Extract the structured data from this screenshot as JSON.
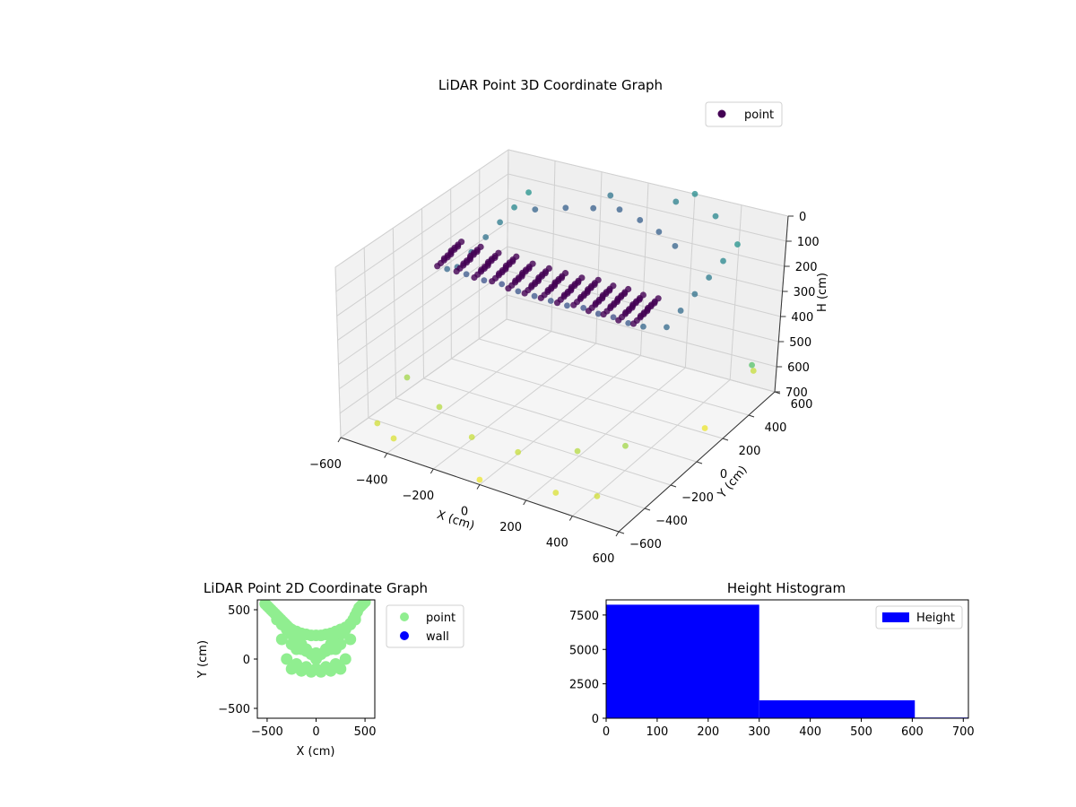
{
  "chart_data": [
    {
      "type": "scatter3d",
      "title": "LiDAR Point 3D Coordinate Graph",
      "xlabel": "X (cm)",
      "ylabel": "Y (cm)",
      "zlabel": "H (cm)",
      "xlim": [
        -600,
        600
      ],
      "ylim": [
        -600,
        600
      ],
      "zlim": [
        0,
        700
      ],
      "z_inverted": true,
      "xticks": [
        "−600",
        "−400",
        "−200",
        "0",
        "200",
        "400",
        "600"
      ],
      "yticks": [
        "−600",
        "−400",
        "−200",
        "0",
        "200",
        "400",
        "600"
      ],
      "zticks": [
        "0",
        "100",
        "200",
        "300",
        "400",
        "500",
        "600",
        "700"
      ],
      "colormap": "viridis",
      "grid": true,
      "legend": {
        "position": "top-right",
        "entries": [
          {
            "label": "point",
            "color": "#440154"
          }
        ]
      },
      "series": [
        {
          "name": "point",
          "description_of_distribution": "dense U-shaped wall of points near the top (H 0-300), vertical columns on left and right sides, sparse floor points near H 600-700",
          "x": [
            -420,
            -350,
            -280,
            -210,
            -140,
            -70,
            0,
            70,
            140,
            210,
            280,
            350,
            420,
            -450,
            -450,
            -450,
            -450,
            -450,
            -450,
            450,
            450,
            450,
            450,
            450,
            450,
            -300,
            -200,
            -100,
            0,
            100,
            200,
            300,
            -500,
            -400,
            0,
            300,
            450,
            500,
            -550,
            -350,
            -150,
            50,
            250,
            400,
            520,
            -100,
            150,
            350,
            200,
            600
          ],
          "y": [
            -120,
            -100,
            -90,
            -80,
            -80,
            -80,
            -80,
            -80,
            -80,
            -90,
            -100,
            -110,
            -120,
            0,
            100,
            200,
            300,
            400,
            500,
            0,
            100,
            200,
            300,
            400,
            500,
            300,
            350,
            380,
            400,
            380,
            350,
            300,
            -500,
            -550,
            -600,
            -550,
            -500,
            600,
            -200,
            -300,
            -400,
            -400,
            -300,
            -200,
            200,
            500,
            550,
            500,
            600,
            400
          ],
          "h": [
            150,
            160,
            170,
            170,
            180,
            180,
            180,
            180,
            170,
            170,
            160,
            160,
            150,
            200,
            180,
            160,
            140,
            120,
            100,
            200,
            180,
            160,
            140,
            120,
            100,
            50,
            40,
            30,
            20,
            30,
            40,
            50,
            650,
            660,
            680,
            660,
            650,
            640,
            600,
            620,
            640,
            640,
            620,
            600,
            680,
            30,
            20,
            10,
            0,
            500
          ]
        }
      ]
    },
    {
      "type": "scatter",
      "title": "LiDAR Point 2D Coordinate Graph",
      "xlabel": "X (cm)",
      "ylabel": "Y (cm)",
      "xlim": [
        -600,
        600
      ],
      "ylim": [
        -600,
        600
      ],
      "xticks": [
        "−500",
        "0",
        "500"
      ],
      "yticks": [
        "−500",
        "0",
        "500"
      ],
      "legend": {
        "position": "outside-right",
        "entries": [
          {
            "label": "point",
            "color": "#90ee90"
          },
          {
            "label": "wall",
            "color": "#0000ff"
          }
        ]
      },
      "series": [
        {
          "name": "point",
          "color": "#90ee90",
          "x": [
            -520,
            -500,
            -480,
            -460,
            -440,
            -420,
            -400,
            -380,
            -360,
            -340,
            -320,
            -300,
            -280,
            -250,
            -200,
            -150,
            -100,
            -50,
            0,
            50,
            100,
            150,
            200,
            250,
            300,
            350,
            380,
            400,
            420,
            440,
            460,
            480,
            500,
            -400,
            -350,
            -300,
            -250,
            -200,
            -150,
            -100,
            -50,
            0,
            50,
            100,
            150,
            200,
            250,
            300,
            350,
            400,
            -350,
            -250,
            -150,
            -50,
            50,
            150,
            250,
            350,
            -300,
            -200,
            -100,
            0,
            100,
            200,
            300,
            -250,
            -150,
            -50,
            50,
            150,
            250,
            -200,
            -100,
            0,
            100,
            200
          ],
          "y": [
            560,
            540,
            520,
            500,
            480,
            460,
            440,
            420,
            400,
            380,
            360,
            340,
            320,
            300,
            280,
            260,
            250,
            240,
            240,
            240,
            250,
            260,
            280,
            300,
            320,
            360,
            400,
            440,
            480,
            520,
            540,
            560,
            580,
            400,
            350,
            300,
            250,
            200,
            150,
            100,
            50,
            0,
            50,
            100,
            150,
            200,
            250,
            300,
            350,
            400,
            200,
            150,
            100,
            50,
            50,
            100,
            150,
            200,
            0,
            -50,
            -80,
            -100,
            -80,
            -50,
            0,
            -100,
            -120,
            -130,
            -130,
            -120,
            -100,
            100,
            80,
            60,
            80,
            100
          ]
        },
        {
          "name": "wall",
          "color": "#0000ff",
          "x": [],
          "y": []
        }
      ]
    },
    {
      "type": "bar",
      "title": "Height Histogram",
      "xlabel": "",
      "ylabel": "",
      "xlim": [
        0,
        710
      ],
      "ylim": [
        0,
        8600
      ],
      "xticks": [
        "0",
        "100",
        "200",
        "300",
        "400",
        "500",
        "600",
        "700"
      ],
      "yticks": [
        "0",
        "2500",
        "5000",
        "7500"
      ],
      "bins": [
        [
          0,
          300
        ],
        [
          300,
          605
        ],
        [
          605,
          710
        ]
      ],
      "values": [
        8250,
        1300,
        50
      ],
      "color": "#0000ff",
      "legend": {
        "position": "top-right",
        "entries": [
          {
            "label": "Height",
            "color": "#0000ff"
          }
        ]
      }
    }
  ]
}
